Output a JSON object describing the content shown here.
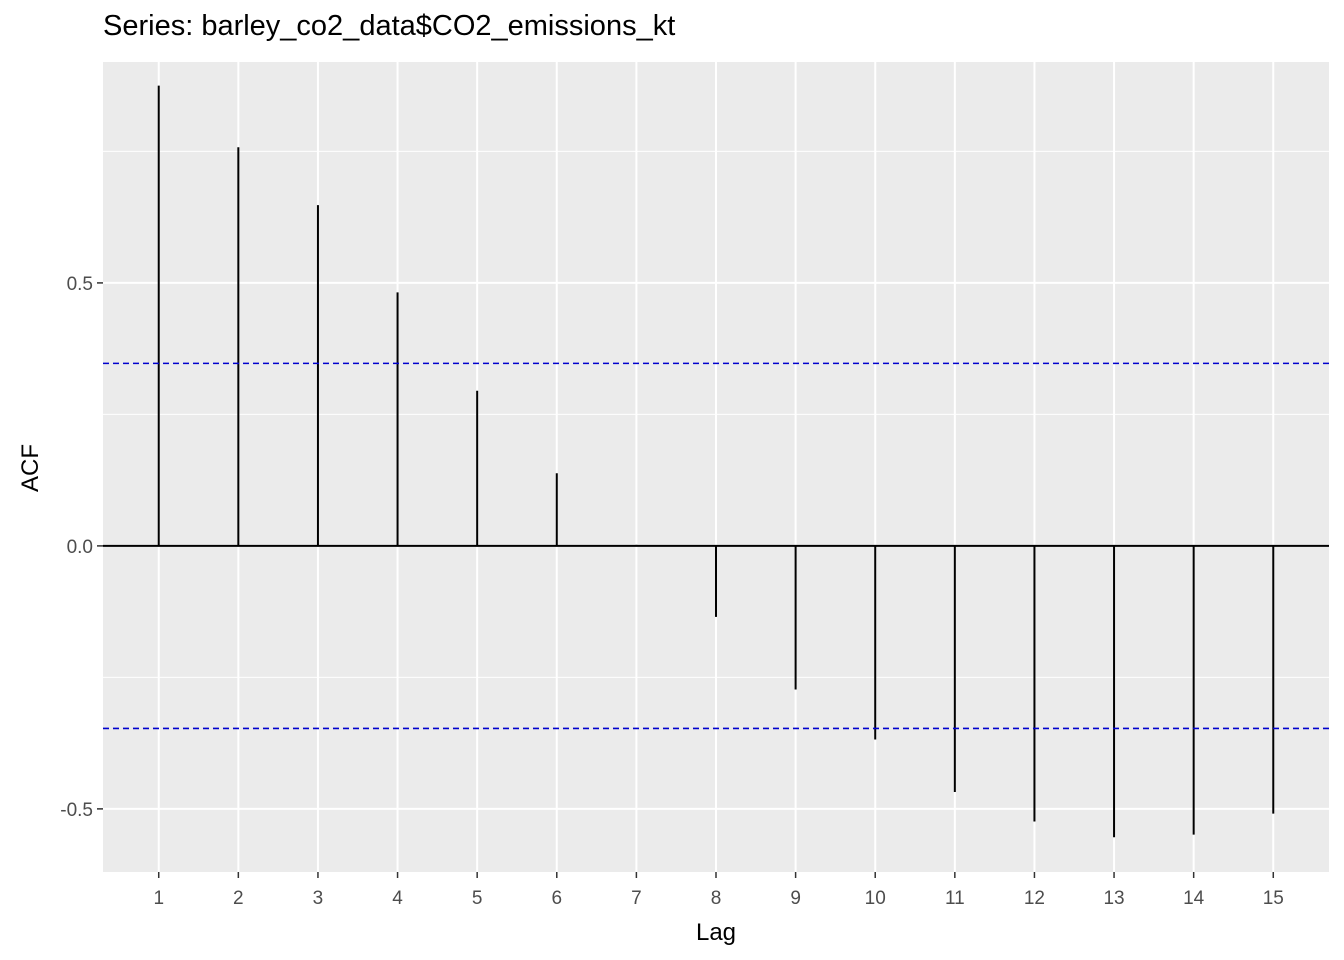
{
  "chart_data": {
    "type": "bar",
    "subtype": "acf-lollipop",
    "title": "Series: barley_co2_data$CO2_emissions_kt",
    "xlabel": "Lag",
    "ylabel": "ACF",
    "x": [
      1,
      2,
      3,
      4,
      5,
      6,
      7,
      8,
      9,
      10,
      11,
      12,
      13,
      14,
      15
    ],
    "values": [
      0.875,
      0.758,
      0.648,
      0.482,
      0.295,
      0.138,
      0.002,
      -0.135,
      -0.273,
      -0.368,
      -0.468,
      -0.524,
      -0.554,
      -0.549,
      -0.509
    ],
    "confidence_bounds": [
      0.347,
      -0.347
    ],
    "xlim": [
      0.3,
      15.7
    ],
    "ylim": [
      -0.62,
      0.92
    ],
    "y_ticks": [
      -0.5,
      0.0,
      0.5
    ],
    "y_tick_labels": [
      "-0.5",
      "0.0",
      "0.5"
    ],
    "x_ticks": [
      1,
      2,
      3,
      4,
      5,
      6,
      7,
      8,
      9,
      10,
      11,
      12,
      13,
      14,
      15
    ],
    "grid": true,
    "colors": {
      "panel": "#ebebeb",
      "grid": "#ffffff",
      "bars": "#000000",
      "bounds": "#0000cd"
    }
  }
}
